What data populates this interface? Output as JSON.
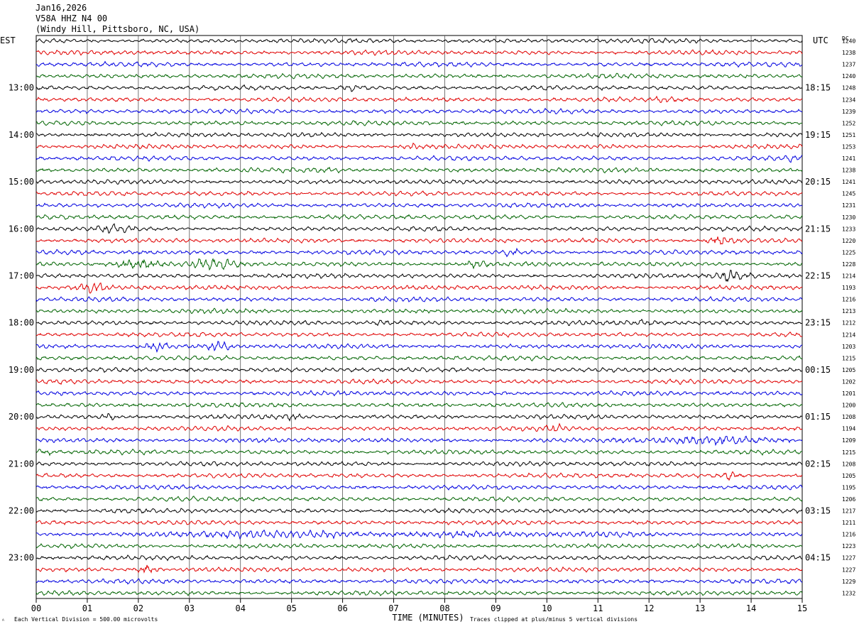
{
  "header": {
    "date": "Jan16,2026",
    "station": "V58A HHZ N4 00",
    "location": "(Windy Hill, Pittsboro, NC, USA)"
  },
  "left_tz": "EST",
  "right_tz": "UTC",
  "dc_label": "DC",
  "footer": {
    "scale_note": "Each Vertical Division =  500.00 microvolts",
    "clip_note": "Traces clipped at plus/minus 5 vertical divisions",
    "corner_mark": "ᴬ"
  },
  "chart_data": {
    "type": "line",
    "xlabel": "TIME (MINUTES)",
    "xlim": [
      0,
      15
    ],
    "x_ticks": [
      "00",
      "01",
      "02",
      "03",
      "04",
      "05",
      "06",
      "07",
      "08",
      "09",
      "10",
      "11",
      "12",
      "13",
      "14",
      "15"
    ],
    "trace_colors": [
      "#000000",
      "#e00000",
      "#0000e0",
      "#006400"
    ],
    "traces_per_hour": 4,
    "left_hour_labels": [
      "13:00",
      "14:00",
      "15:00",
      "16:00",
      "17:00",
      "18:00",
      "19:00",
      "20:00",
      "21:00",
      "22:00",
      "23:00"
    ],
    "right_hour_labels": [
      "18:15",
      "19:15",
      "20:15",
      "21:15",
      "22:15",
      "23:15",
      "00:15",
      "01:15",
      "02:15",
      "03:15",
      "04:15"
    ],
    "dc_values": [
      "1240",
      "1238",
      "1237",
      "1240",
      "1248",
      "1234",
      "1239",
      "1252",
      "1251",
      "1253",
      "1241",
      "1238",
      "1241",
      "1245",
      "1231",
      "1230",
      "1233",
      "1220",
      "1225",
      "1228",
      "1214",
      "1193",
      "1216",
      "1213",
      "1212",
      "1214",
      "1203",
      "1215",
      "1205",
      "1202",
      "1201",
      "1200",
      "1208",
      "1194",
      "1209",
      "1215",
      "1208",
      "1205",
      "1195",
      "1206",
      "1217",
      "1211",
      "1216",
      "1223",
      "1227",
      "1227",
      "1229",
      "1232"
    ],
    "events": [
      {
        "trace": 4,
        "minute": 6.2,
        "amp": 1.6,
        "width": 0.3
      },
      {
        "trace": 5,
        "minute": 12.3,
        "amp": 1.6,
        "width": 0.3
      },
      {
        "trace": 9,
        "minute": 7.4,
        "amp": 1.5,
        "width": 0.2
      },
      {
        "trace": 10,
        "minute": 14.9,
        "amp": 1.6,
        "width": 0.25
      },
      {
        "trace": 11,
        "minute": 5.8,
        "amp": 1.4,
        "width": 0.4
      },
      {
        "trace": 16,
        "minute": 1.5,
        "amp": 1.7,
        "width": 0.4
      },
      {
        "trace": 17,
        "minute": 13.4,
        "amp": 2.4,
        "width": 0.35
      },
      {
        "trace": 18,
        "minute": 9.3,
        "amp": 1.8,
        "width": 0.25
      },
      {
        "trace": 19,
        "minute": 1.9,
        "amp": 2.6,
        "width": 0.6
      },
      {
        "trace": 19,
        "minute": 3.5,
        "amp": 2.2,
        "width": 0.6
      },
      {
        "trace": 19,
        "minute": 8.6,
        "amp": 2.0,
        "width": 0.3
      },
      {
        "trace": 20,
        "minute": 13.6,
        "amp": 2.6,
        "width": 0.45
      },
      {
        "trace": 21,
        "minute": 1.1,
        "amp": 2.0,
        "width": 0.4
      },
      {
        "trace": 24,
        "minute": 11.9,
        "amp": 1.6,
        "width": 0.3
      },
      {
        "trace": 24,
        "minute": 6.8,
        "amp": 1.5,
        "width": 0.2
      },
      {
        "trace": 26,
        "minute": 2.3,
        "amp": 2.5,
        "width": 0.35
      },
      {
        "trace": 26,
        "minute": 3.6,
        "amp": 2.2,
        "width": 0.3
      },
      {
        "trace": 28,
        "minute": 3.1,
        "amp": 1.6,
        "width": 0.25
      },
      {
        "trace": 32,
        "minute": 1.4,
        "amp": 1.7,
        "width": 0.2
      },
      {
        "trace": 32,
        "minute": 5.0,
        "amp": 1.5,
        "width": 0.2
      },
      {
        "trace": 33,
        "minute": 10.2,
        "amp": 1.6,
        "width": 0.3
      },
      {
        "trace": 34,
        "minute": 13.4,
        "amp": 1.9,
        "width": 1.9
      },
      {
        "trace": 35,
        "minute": 0.2,
        "amp": 1.8,
        "width": 0.4
      },
      {
        "trace": 37,
        "minute": 13.6,
        "amp": 2.0,
        "width": 0.3
      },
      {
        "trace": 42,
        "minute": 3.5,
        "amp": 1.4,
        "width": 1.5
      },
      {
        "trace": 42,
        "minute": 7.2,
        "amp": 1.5,
        "width": 5.2
      },
      {
        "trace": 45,
        "minute": 2.15,
        "amp": 2.6,
        "width": 0.25
      }
    ]
  }
}
